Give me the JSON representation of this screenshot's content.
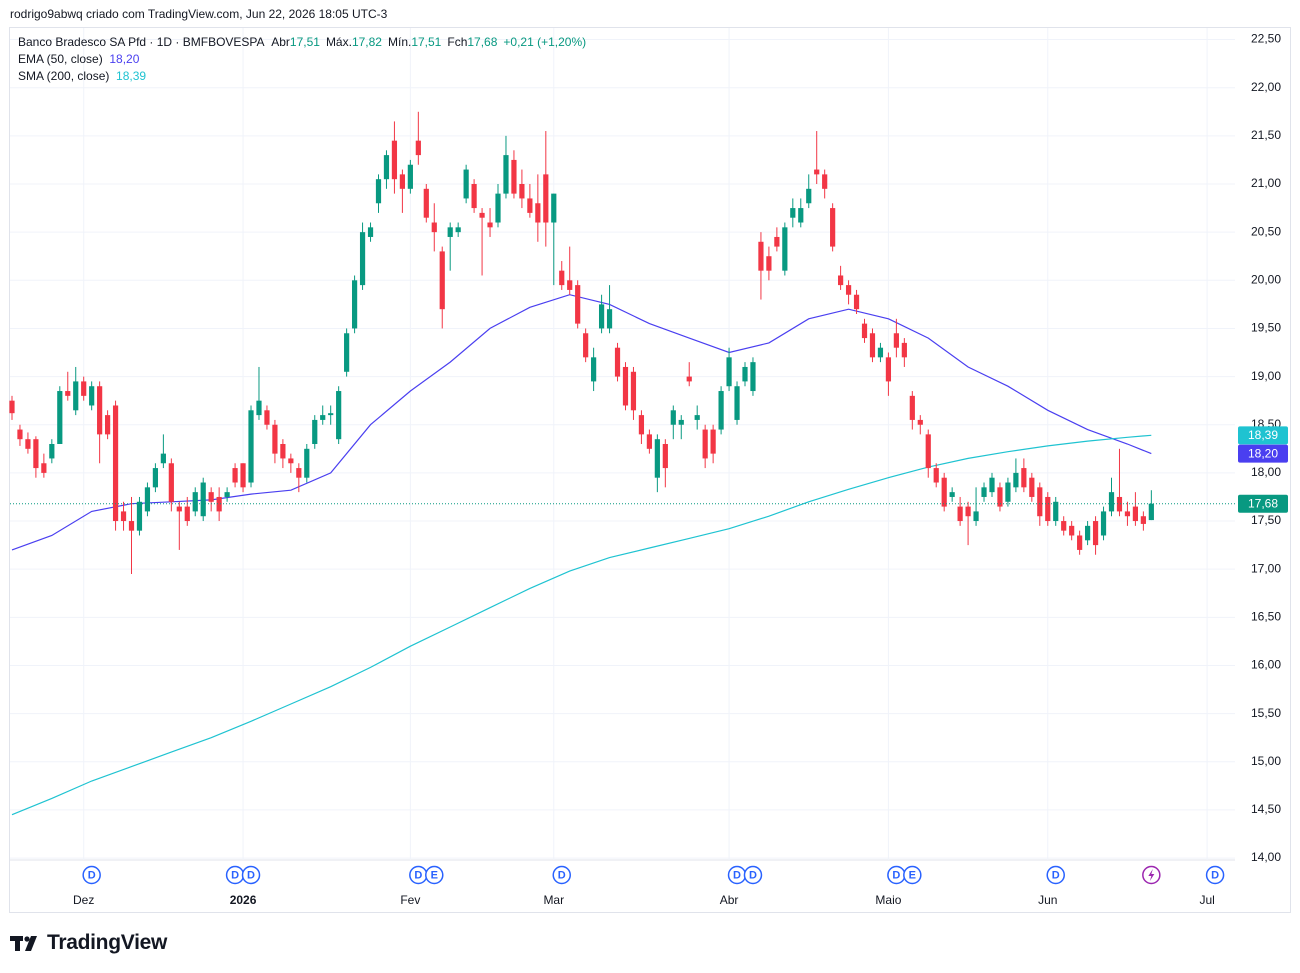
{
  "header": "rodrigo9abwq criado com TradingView.com, Jun 22, 2026 18:05 UTC-3",
  "logo": "TradingView",
  "chart_data": {
    "type": "candlestick",
    "legend": {
      "title": "Banco Bradesco SA Pfd · 1D · BMFBOVESPA",
      "items": [
        {
          "label": "Abr",
          "value": "17,51"
        },
        {
          "label": "Máx.",
          "value": "17,82"
        },
        {
          "label": "Mín.",
          "value": "17,51"
        },
        {
          "label": "Fch",
          "value": "17,68"
        }
      ],
      "change": "+0,21 (+1,20%)"
    },
    "up_color": "#089981",
    "down_color": "#f23645",
    "open": [
      18.75,
      18.45,
      18.35,
      18.35,
      18.1,
      18.15,
      18.3,
      18.85,
      18.65,
      18.95,
      18.7,
      18.9,
      18.6,
      18.7,
      17.6,
      17.5,
      17.4,
      17.6,
      17.85,
      18.1,
      18.1,
      17.65,
      17.65,
      17.6,
      17.55,
      17.8,
      17.75,
      17.75,
      18.05,
      18.1,
      17.9,
      18.6,
      18.65,
      18.5,
      18.3,
      18.15,
      18.05,
      17.95,
      18.3,
      18.55,
      18.6,
      18.35,
      19.05,
      19.5,
      19.95,
      20.45,
      20.8,
      21.05,
      21.45,
      21.1,
      20.95,
      21.45,
      20.95,
      20.6,
      20.3,
      20.45,
      20.5,
      20.85,
      21.0,
      20.7,
      20.6,
      20.6,
      20.9,
      21.25,
      21.0,
      20.85,
      20.8,
      21.1,
      20.6,
      20.1,
      20.0,
      19.95,
      19.45,
      18.95,
      19.5,
      19.5,
      19.3,
      19.1,
      19.05,
      18.6,
      18.4,
      17.95,
      18.3,
      18.5,
      18.5,
      19.0,
      18.55,
      18.45,
      18.45,
      18.45,
      18.9,
      18.55,
      18.95,
      18.85,
      20.4,
      20.25,
      20.45,
      20.1,
      20.65,
      20.6,
      20.8,
      21.15,
      21.1,
      20.75,
      20.05,
      19.95,
      19.85,
      19.55,
      19.45,
      19.2,
      19.2,
      19.45,
      19.35,
      18.8,
      18.55,
      18.4,
      18.05,
      17.95,
      17.75,
      17.65,
      17.65,
      17.5,
      17.75,
      17.8,
      17.85,
      17.7,
      17.85,
      18.05,
      17.95,
      17.85,
      17.75,
      17.5,
      17.5,
      17.45,
      17.35,
      17.3,
      17.5,
      17.35,
      17.6,
      17.75,
      17.6,
      17.65,
      17.55,
      17.51
    ],
    "high": [
      18.8,
      18.5,
      18.42,
      18.38,
      18.2,
      18.35,
      18.9,
      19.05,
      19.1,
      19.0,
      18.95,
      18.95,
      18.65,
      18.75,
      17.7,
      17.75,
      17.75,
      17.9,
      18.1,
      18.4,
      18.15,
      17.7,
      17.75,
      17.85,
      17.95,
      17.85,
      17.85,
      17.85,
      18.1,
      18.1,
      18.7,
      19.1,
      18.7,
      18.55,
      18.35,
      18.2,
      18.1,
      18.3,
      18.6,
      18.7,
      18.7,
      18.9,
      19.5,
      20.05,
      20.6,
      20.6,
      21.1,
      21.35,
      21.65,
      21.15,
      21.25,
      21.75,
      21.0,
      20.8,
      20.35,
      20.6,
      20.6,
      21.2,
      21.05,
      20.75,
      20.75,
      21.0,
      21.5,
      21.35,
      21.15,
      21.0,
      21.1,
      21.55,
      20.9,
      20.2,
      20.35,
      20.0,
      19.5,
      19.3,
      19.85,
      19.95,
      19.35,
      19.15,
      19.1,
      18.65,
      18.45,
      18.4,
      18.35,
      18.7,
      18.6,
      19.15,
      18.7,
      18.5,
      18.5,
      18.9,
      19.3,
      18.95,
      19.15,
      19.2,
      20.5,
      20.35,
      20.55,
      20.6,
      20.85,
      20.85,
      21.1,
      21.55,
      21.15,
      20.8,
      20.15,
      20.0,
      19.9,
      19.6,
      19.5,
      19.35,
      19.25,
      19.6,
      19.4,
      18.85,
      18.6,
      18.45,
      18.1,
      18.0,
      17.85,
      17.75,
      17.7,
      17.85,
      17.9,
      18.0,
      17.9,
      17.95,
      18.15,
      18.15,
      18.0,
      17.9,
      17.8,
      17.75,
      17.55,
      17.5,
      17.4,
      17.5,
      17.55,
      17.65,
      17.95,
      18.25,
      17.7,
      17.8,
      17.6,
      17.82
    ],
    "low": [
      18.55,
      18.28,
      18.2,
      17.95,
      17.95,
      18.1,
      18.3,
      18.75,
      18.6,
      18.75,
      18.65,
      18.1,
      18.35,
      17.4,
      17.4,
      16.95,
      17.35,
      17.55,
      17.8,
      18.05,
      17.6,
      17.2,
      17.45,
      17.55,
      17.5,
      17.6,
      17.5,
      17.7,
      17.85,
      17.8,
      17.85,
      18.55,
      18.45,
      18.1,
      18.05,
      18.0,
      17.8,
      17.9,
      18.25,
      18.5,
      18.5,
      18.3,
      19.0,
      19.45,
      19.9,
      20.4,
      20.7,
      20.95,
      20.9,
      20.7,
      20.9,
      21.2,
      20.6,
      20.3,
      19.5,
      20.1,
      20.45,
      20.8,
      20.7,
      20.05,
      20.45,
      20.55,
      20.85,
      20.85,
      20.75,
      20.65,
      20.4,
      20.35,
      19.95,
      19.9,
      19.85,
      19.5,
      19.15,
      18.85,
      19.45,
      19.45,
      18.95,
      18.65,
      18.55,
      18.3,
      18.2,
      17.8,
      17.85,
      18.35,
      18.35,
      18.9,
      18.45,
      18.05,
      18.1,
      18.4,
      18.85,
      18.5,
      18.9,
      18.8,
      19.8,
      20.0,
      20.3,
      20.05,
      20.55,
      20.55,
      20.75,
      21.0,
      20.85,
      20.3,
      19.9,
      19.75,
      19.65,
      19.35,
      19.15,
      19.15,
      18.8,
      19.2,
      19.1,
      18.45,
      18.4,
      17.95,
      17.85,
      17.6,
      17.7,
      17.45,
      17.25,
      17.45,
      17.7,
      17.75,
      17.6,
      17.65,
      17.8,
      17.8,
      17.7,
      17.45,
      17.45,
      17.45,
      17.35,
      17.3,
      17.15,
      17.25,
      17.15,
      17.3,
      17.55,
      17.55,
      17.45,
      17.45,
      17.4,
      17.51
    ],
    "close": [
      18.62,
      18.35,
      18.25,
      18.05,
      18.0,
      18.3,
      18.85,
      18.8,
      18.95,
      18.8,
      18.9,
      18.4,
      18.4,
      17.5,
      17.5,
      17.4,
      17.7,
      17.85,
      18.05,
      18.2,
      17.7,
      17.6,
      17.5,
      17.8,
      17.9,
      17.7,
      17.6,
      17.8,
      17.9,
      17.85,
      18.65,
      18.75,
      18.5,
      18.2,
      18.15,
      18.1,
      17.95,
      18.25,
      18.55,
      18.6,
      18.62,
      18.85,
      19.45,
      20.0,
      20.5,
      20.55,
      21.05,
      21.3,
      21.05,
      20.95,
      21.2,
      21.3,
      20.65,
      20.5,
      19.7,
      20.55,
      20.55,
      21.15,
      20.75,
      20.65,
      20.55,
      20.9,
      21.3,
      20.9,
      20.85,
      20.7,
      20.6,
      20.6,
      20.9,
      19.95,
      19.9,
      19.55,
      19.2,
      19.2,
      19.75,
      19.7,
      19.0,
      18.7,
      18.65,
      18.4,
      18.25,
      18.35,
      18.05,
      18.65,
      18.55,
      18.95,
      18.6,
      18.15,
      18.2,
      18.85,
      19.2,
      18.9,
      19.1,
      19.15,
      20.1,
      20.1,
      20.35,
      20.55,
      20.75,
      20.75,
      20.95,
      21.1,
      20.95,
      20.35,
      19.95,
      19.85,
      19.7,
      19.4,
      19.2,
      19.3,
      18.95,
      19.3,
      19.2,
      18.55,
      18.5,
      18.05,
      17.9,
      17.65,
      17.8,
      17.5,
      17.55,
      17.6,
      17.85,
      17.95,
      17.65,
      17.9,
      18.0,
      17.85,
      17.75,
      17.55,
      17.5,
      17.7,
      17.4,
      17.35,
      17.2,
      17.45,
      17.25,
      17.6,
      17.8,
      17.6,
      17.55,
      17.5,
      17.47,
      17.68
    ],
    "last_close_label": "17,68",
    "series": [
      {
        "name": "EMA (50, close)",
        "color": "#4a3ff0",
        "last_value": 18.2,
        "last_label": "18,20",
        "x": [
          0,
          5,
          10,
          15,
          20,
          25,
          30,
          35,
          40,
          45,
          50,
          55,
          60,
          65,
          70,
          75,
          80,
          85,
          90,
          95,
          100,
          105,
          110,
          115,
          120,
          125,
          130,
          135,
          140,
          143
        ],
        "values": [
          17.2,
          17.35,
          17.6,
          17.68,
          17.7,
          17.72,
          17.78,
          17.82,
          18.0,
          18.5,
          18.85,
          19.15,
          19.5,
          19.72,
          19.85,
          19.75,
          19.55,
          19.4,
          19.25,
          19.35,
          19.6,
          19.7,
          19.6,
          19.4,
          19.1,
          18.9,
          18.65,
          18.45,
          18.3,
          18.2
        ]
      },
      {
        "name": "SMA (200, close)",
        "color": "#1fc3d1",
        "last_value": 18.39,
        "last_label": "18,39",
        "x": [
          0,
          5,
          10,
          15,
          20,
          25,
          30,
          35,
          40,
          45,
          50,
          55,
          60,
          65,
          70,
          75,
          80,
          85,
          90,
          95,
          100,
          105,
          110,
          115,
          120,
          125,
          130,
          135,
          140,
          143
        ],
        "values": [
          14.45,
          14.62,
          14.8,
          14.95,
          15.1,
          15.25,
          15.42,
          15.6,
          15.78,
          15.98,
          16.2,
          16.4,
          16.6,
          16.8,
          16.98,
          17.12,
          17.22,
          17.32,
          17.42,
          17.55,
          17.7,
          17.83,
          17.95,
          18.06,
          18.15,
          18.22,
          18.28,
          18.33,
          18.37,
          18.39
        ]
      }
    ],
    "xlim": [
      -0.25,
      153.5
    ],
    "xticks": [
      {
        "value": 9,
        "label": "Dez"
      },
      {
        "value": 29,
        "label": "2026",
        "bold": true
      },
      {
        "value": 50,
        "label": "Fev"
      },
      {
        "value": 68,
        "label": "Mar"
      },
      {
        "value": 90,
        "label": "Abr"
      },
      {
        "value": 110,
        "label": "Maio"
      },
      {
        "value": 130,
        "label": "Jun"
      },
      {
        "value": 150,
        "label": "Jul"
      }
    ],
    "ylim": [
      13.98,
      22.62
    ],
    "yticks": [
      {
        "value": 14,
        "label": "14,00"
      },
      {
        "value": 14.5,
        "label": "14,50"
      },
      {
        "value": 15,
        "label": "15,00"
      },
      {
        "value": 15.5,
        "label": "15,50"
      },
      {
        "value": 16,
        "label": "16,00"
      },
      {
        "value": 16.5,
        "label": "16,50"
      },
      {
        "value": 17,
        "label": "17,00"
      },
      {
        "value": 17.5,
        "label": "17,50"
      },
      {
        "value": 18,
        "label": "18,00"
      },
      {
        "value": 18.5,
        "label": "18,50"
      },
      {
        "value": 19,
        "label": "19,00"
      },
      {
        "value": 19.5,
        "label": "19,50"
      },
      {
        "value": 20,
        "label": "20,00"
      },
      {
        "value": 20.5,
        "label": "20,50"
      },
      {
        "value": 21,
        "label": "21,00"
      },
      {
        "value": 21.5,
        "label": "21,50"
      },
      {
        "value": 22,
        "label": "22,00"
      },
      {
        "value": 22.5,
        "label": "22,50"
      }
    ],
    "grid": true,
    "events": [
      {
        "x": 10,
        "label": "D"
      },
      {
        "x": 28,
        "label": "D"
      },
      {
        "x": 30,
        "label": "D"
      },
      {
        "x": 51,
        "label": "D"
      },
      {
        "x": 53,
        "label": "E"
      },
      {
        "x": 69,
        "label": "D"
      },
      {
        "x": 91,
        "label": "D"
      },
      {
        "x": 93,
        "label": "D"
      },
      {
        "x": 111,
        "label": "D"
      },
      {
        "x": 113,
        "label": "E"
      },
      {
        "x": 131,
        "label": "D"
      },
      {
        "x": 151,
        "label": "D"
      }
    ],
    "flash_event": 143
  }
}
